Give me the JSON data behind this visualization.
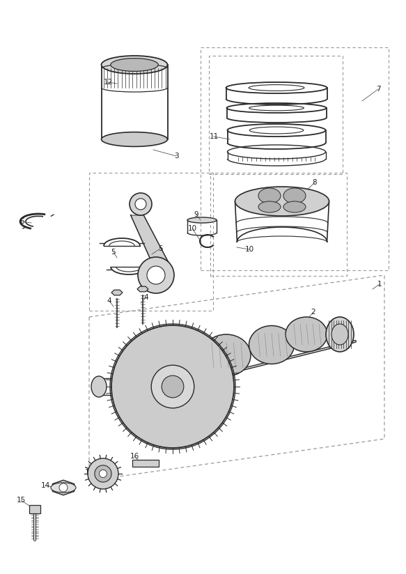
{
  "background_color": "#ffffff",
  "figure_width": 5.83,
  "figure_height": 8.24,
  "dpi": 100,
  "line_color": "#2a2a2a",
  "dash_color": "#999999",
  "text_color": "#222222",
  "gray_fill": "#c8c8c8",
  "light_fill": "#e8e8e8"
}
